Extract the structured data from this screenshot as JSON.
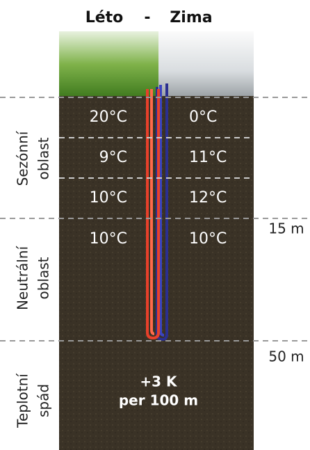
{
  "header": {
    "left": "Léto",
    "separator": "-",
    "right": "Zima"
  },
  "rows": [
    {
      "summer": "20°C",
      "winter": "0°C"
    },
    {
      "summer": "9°C",
      "winter": "11°C"
    },
    {
      "summer": "10°C",
      "winter": "12°C"
    },
    {
      "summer": "10°C",
      "winter": "10°C"
    }
  ],
  "zones": [
    {
      "line1": "Sezónní",
      "line2": "oblast"
    },
    {
      "line1": "Neutrální",
      "line2": "oblast"
    },
    {
      "line1": "Teplotní",
      "line2": "spád"
    }
  ],
  "depths": [
    "15 m",
    "50 m"
  ],
  "gradient": {
    "line1": "+3 K",
    "line2": "per 100 m"
  }
}
